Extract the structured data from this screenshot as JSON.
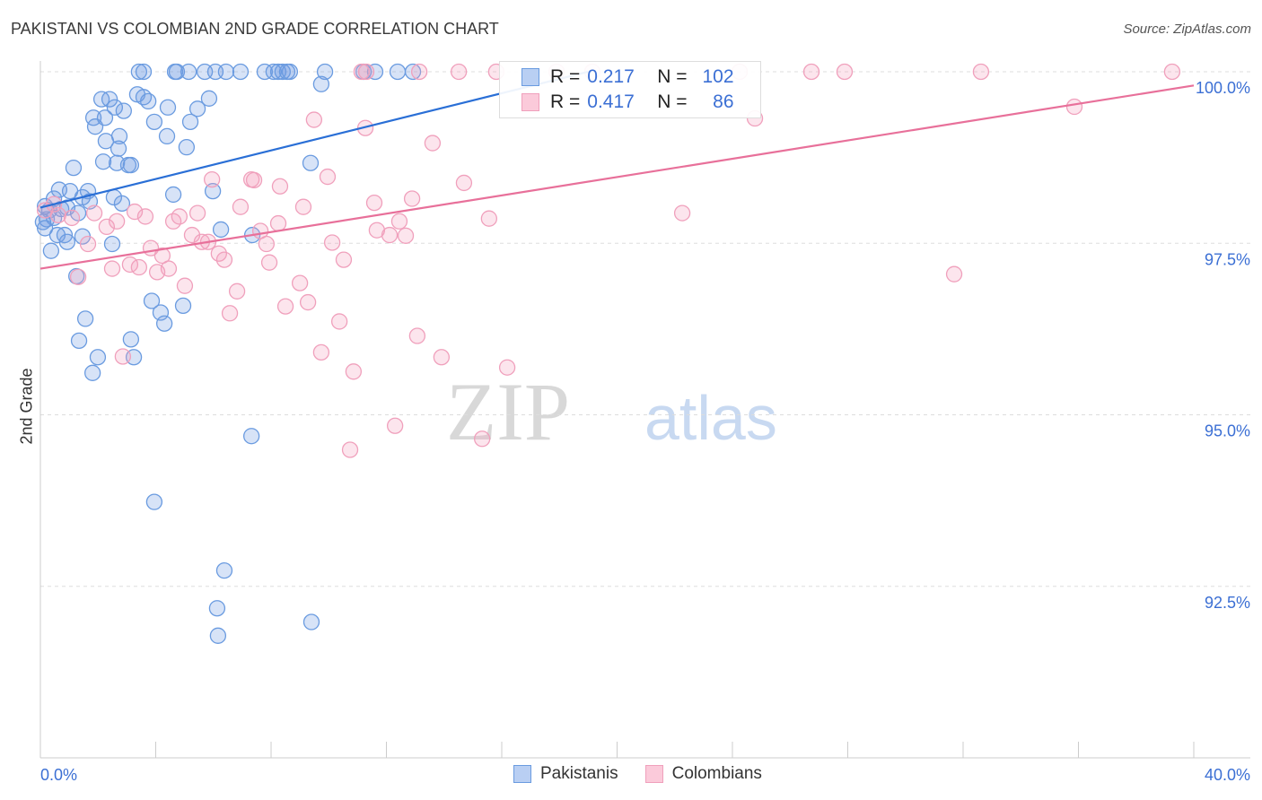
{
  "title": "PAKISTANI VS COLOMBIAN 2ND GRADE CORRELATION CHART",
  "source": "Source: ZipAtlas.com",
  "watermark": {
    "zip": "ZIP",
    "atlas": "atlas"
  },
  "chart_data": {
    "type": "scatter",
    "title": "PAKISTANI VS COLOMBIAN 2ND GRADE CORRELATION CHART",
    "xlabel": "",
    "ylabel": "2nd Grade",
    "xlim": [
      0,
      40
    ],
    "ylim": [
      90,
      100
    ],
    "x_tick_labels": [
      "0.0%",
      "40.0%"
    ],
    "y_ticks": [
      92.5,
      95,
      97.5,
      100
    ],
    "y_tick_labels": [
      "92.5%",
      "95.0%",
      "97.5%",
      "100.0%"
    ],
    "grid": true,
    "legend_placement": "top-center",
    "series": [
      {
        "name": "Pakistanis",
        "color": "#5b8fd9",
        "R": "0.217",
        "N": "102",
        "trend": [
          [
            0,
            98.02
          ],
          [
            19.0,
            100
          ]
        ],
        "points": [
          [
            3.42,
            100
          ],
          [
            3.58,
            100
          ],
          [
            4.67,
            100
          ],
          [
            4.73,
            100
          ],
          [
            5.14,
            100
          ],
          [
            5.7,
            100
          ],
          [
            6.07,
            100
          ],
          [
            6.44,
            100
          ],
          [
            6.94,
            100
          ],
          [
            7.78,
            100
          ],
          [
            8.09,
            100
          ],
          [
            8.25,
            100
          ],
          [
            8.4,
            100
          ],
          [
            8.56,
            100
          ],
          [
            8.65,
            100
          ],
          [
            9.87,
            100
          ],
          [
            11.21,
            100
          ],
          [
            11.61,
            100
          ],
          [
            12.39,
            100
          ],
          [
            12.92,
            100
          ],
          [
            9.74,
            99.82
          ],
          [
            2.12,
            99.6
          ],
          [
            2.4,
            99.6
          ],
          [
            3.36,
            99.67
          ],
          [
            3.58,
            99.63
          ],
          [
            3.74,
            99.57
          ],
          [
            4.42,
            99.48
          ],
          [
            5.85,
            99.61
          ],
          [
            5.45,
            99.46
          ],
          [
            2.58,
            99.48
          ],
          [
            2.89,
            99.43
          ],
          [
            1.84,
            99.33
          ],
          [
            2.24,
            99.33
          ],
          [
            1.9,
            99.2
          ],
          [
            3.95,
            99.27
          ],
          [
            5.2,
            99.27
          ],
          [
            4.39,
            99.06
          ],
          [
            2.74,
            99.06
          ],
          [
            2.27,
            98.99
          ],
          [
            2.71,
            98.88
          ],
          [
            5.07,
            98.9
          ],
          [
            2.18,
            98.69
          ],
          [
            2.65,
            98.67
          ],
          [
            3.05,
            98.64
          ],
          [
            3.14,
            98.64
          ],
          [
            1.15,
            98.6
          ],
          [
            9.37,
            98.67
          ],
          [
            5.98,
            98.26
          ],
          [
            4.61,
            98.21
          ],
          [
            0.65,
            98.28
          ],
          [
            1.03,
            98.26
          ],
          [
            1.65,
            98.26
          ],
          [
            2.55,
            98.17
          ],
          [
            1.46,
            98.17
          ],
          [
            1.71,
            98.11
          ],
          [
            2.83,
            98.08
          ],
          [
            0.47,
            98.15
          ],
          [
            0.16,
            98.04
          ],
          [
            0.31,
            97.98
          ],
          [
            0.72,
            98.0
          ],
          [
            0.93,
            98.02
          ],
          [
            1.31,
            97.94
          ],
          [
            0.22,
            97.85
          ],
          [
            0.47,
            97.87
          ],
          [
            0.09,
            97.81
          ],
          [
            0.16,
            97.72
          ],
          [
            0.59,
            97.62
          ],
          [
            0.84,
            97.62
          ],
          [
            1.46,
            97.6
          ],
          [
            0.93,
            97.52
          ],
          [
            2.49,
            97.49
          ],
          [
            6.26,
            97.7
          ],
          [
            7.35,
            97.62
          ],
          [
            0.37,
            97.39
          ],
          [
            1.25,
            97.02
          ],
          [
            3.86,
            96.66
          ],
          [
            4.17,
            96.49
          ],
          [
            4.95,
            96.59
          ],
          [
            4.3,
            96.33
          ],
          [
            1.56,
            96.4
          ],
          [
            1.34,
            96.08
          ],
          [
            3.14,
            96.1
          ],
          [
            1.99,
            95.84
          ],
          [
            3.24,
            95.84
          ],
          [
            1.81,
            95.61
          ],
          [
            7.32,
            94.69
          ],
          [
            3.95,
            93.73
          ],
          [
            6.38,
            92.73
          ],
          [
            6.13,
            92.18
          ],
          [
            9.4,
            91.98
          ],
          [
            6.16,
            91.78
          ]
        ]
      },
      {
        "name": "Colombians",
        "color": "#f0a0bc",
        "R": "0.417",
        "N": "86",
        "trend": [
          [
            0,
            97.13
          ],
          [
            40,
            99.8
          ]
        ],
        "points": [
          [
            11.14,
            100
          ],
          [
            11.3,
            100
          ],
          [
            13.14,
            100
          ],
          [
            14.51,
            100
          ],
          [
            15.81,
            100
          ],
          [
            17.9,
            100
          ],
          [
            19.14,
            100
          ],
          [
            24.25,
            100
          ],
          [
            26.74,
            100
          ],
          [
            27.89,
            100
          ],
          [
            32.62,
            100
          ],
          [
            39.25,
            100
          ],
          [
            35.86,
            99.49
          ],
          [
            24.78,
            99.32
          ],
          [
            9.49,
            99.3
          ],
          [
            11.27,
            99.18
          ],
          [
            13.6,
            98.96
          ],
          [
            14.69,
            98.38
          ],
          [
            5.95,
            98.43
          ],
          [
            7.32,
            98.43
          ],
          [
            7.41,
            98.42
          ],
          [
            8.31,
            98.33
          ],
          [
            9.96,
            98.47
          ],
          [
            12.89,
            98.15
          ],
          [
            11.58,
            98.09
          ],
          [
            6.94,
            98.03
          ],
          [
            9.12,
            98.03
          ],
          [
            22.26,
            97.94
          ],
          [
            15.56,
            97.86
          ],
          [
            12.45,
            97.82
          ],
          [
            0.47,
            98.07
          ],
          [
            0.16,
            97.98
          ],
          [
            0.62,
            97.91
          ],
          [
            1.09,
            97.87
          ],
          [
            1.87,
            97.94
          ],
          [
            3.27,
            97.96
          ],
          [
            3.64,
            97.89
          ],
          [
            4.61,
            97.82
          ],
          [
            4.82,
            97.89
          ],
          [
            5.45,
            97.94
          ],
          [
            2.65,
            97.82
          ],
          [
            2.3,
            97.74
          ],
          [
            7.63,
            97.68
          ],
          [
            8.25,
            97.79
          ],
          [
            11.67,
            97.69
          ],
          [
            12.11,
            97.62
          ],
          [
            12.67,
            97.61
          ],
          [
            5.26,
            97.62
          ],
          [
            5.6,
            97.52
          ],
          [
            5.82,
            97.52
          ],
          [
            10.12,
            97.51
          ],
          [
            1.65,
            97.49
          ],
          [
            7.84,
            97.49
          ],
          [
            3.83,
            97.43
          ],
          [
            4.23,
            97.32
          ],
          [
            6.19,
            97.35
          ],
          [
            6.38,
            97.26
          ],
          [
            10.52,
            97.26
          ],
          [
            7.94,
            97.22
          ],
          [
            3.11,
            97.19
          ],
          [
            3.42,
            97.15
          ],
          [
            4.45,
            97.13
          ],
          [
            2.49,
            97.13
          ],
          [
            4.05,
            97.08
          ],
          [
            1.31,
            97.01
          ],
          [
            5.01,
            96.88
          ],
          [
            9.0,
            96.92
          ],
          [
            6.82,
            96.8
          ],
          [
            9.28,
            96.64
          ],
          [
            8.5,
            96.58
          ],
          [
            6.57,
            96.48
          ],
          [
            10.37,
            96.36
          ],
          [
            13.07,
            96.15
          ],
          [
            9.74,
            95.91
          ],
          [
            2.86,
            95.85
          ],
          [
            13.91,
            95.84
          ],
          [
            16.19,
            95.69
          ],
          [
            10.86,
            95.63
          ],
          [
            12.3,
            94.84
          ],
          [
            15.32,
            94.65
          ],
          [
            10.74,
            94.49
          ],
          [
            31.69,
            97.05
          ]
        ]
      }
    ]
  },
  "legend": {
    "r_label": "R =",
    "n_label": "N =",
    "rows": [
      {
        "r": "0.217",
        "n": "102"
      },
      {
        "r": "0.417",
        "n": "86"
      }
    ]
  },
  "bottom_legend": [
    "Pakistanis",
    "Colombians"
  ]
}
